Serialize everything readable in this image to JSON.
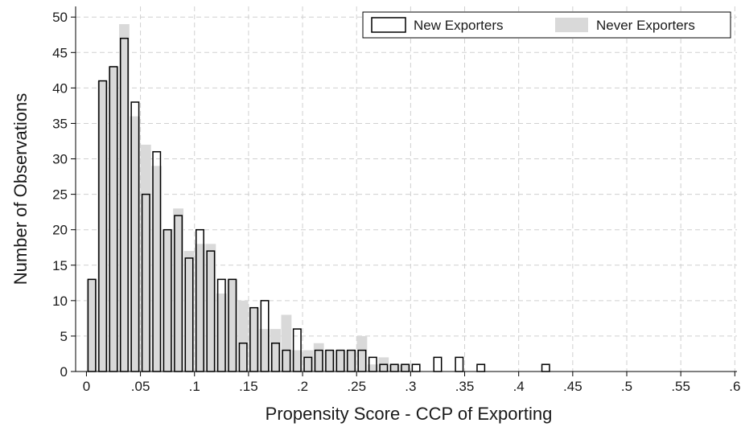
{
  "chart_data": {
    "type": "bar",
    "title": "",
    "xlabel": "Propensity Score - CCP of Exporting",
    "ylabel": "Number of Observations",
    "xlim": [
      -0.01,
      0.602
    ],
    "ylim": [
      0,
      51.5
    ],
    "grid": true,
    "legend_position": "top-right",
    "bin_width": 0.01,
    "x_ticks": [
      0,
      0.05,
      0.1,
      0.15,
      0.2,
      0.25,
      0.3,
      0.35,
      0.4,
      0.45,
      0.5,
      0.55,
      0.6
    ],
    "x_tick_labels": [
      "0",
      ".05",
      ".1",
      ".15",
      ".2",
      ".25",
      ".3",
      ".35",
      ".4",
      ".45",
      ".5",
      ".55",
      ".6"
    ],
    "y_ticks": [
      0,
      5,
      10,
      15,
      20,
      25,
      30,
      35,
      40,
      45,
      50
    ],
    "y_tick_labels": [
      "0",
      "5",
      "10",
      "15",
      "20",
      "25",
      "30",
      "35",
      "40",
      "45",
      "50"
    ],
    "colors": {
      "never_fill": "#d9d9d9",
      "new_stroke": "#000000",
      "new_fill": "#ffffff",
      "grid": "#d0d0d0"
    },
    "series": [
      {
        "name": "Never Exporters",
        "style": "filled-gray",
        "points": [
          {
            "x": 0.005,
            "y": 13
          },
          {
            "x": 0.015,
            "y": 41
          },
          {
            "x": 0.025,
            "y": 43
          },
          {
            "x": 0.035,
            "y": 49
          },
          {
            "x": 0.045,
            "y": 36
          },
          {
            "x": 0.055,
            "y": 32
          },
          {
            "x": 0.065,
            "y": 29
          },
          {
            "x": 0.075,
            "y": 20
          },
          {
            "x": 0.085,
            "y": 23
          },
          {
            "x": 0.095,
            "y": 17
          },
          {
            "x": 0.105,
            "y": 18
          },
          {
            "x": 0.115,
            "y": 18
          },
          {
            "x": 0.125,
            "y": 11
          },
          {
            "x": 0.135,
            "y": 13
          },
          {
            "x": 0.145,
            "y": 10
          },
          {
            "x": 0.155,
            "y": 9
          },
          {
            "x": 0.165,
            "y": 6
          },
          {
            "x": 0.175,
            "y": 6
          },
          {
            "x": 0.185,
            "y": 8
          },
          {
            "x": 0.195,
            "y": 3
          },
          {
            "x": 0.205,
            "y": 3
          },
          {
            "x": 0.215,
            "y": 4
          },
          {
            "x": 0.225,
            "y": 3
          },
          {
            "x": 0.235,
            "y": 3
          },
          {
            "x": 0.245,
            "y": 3
          },
          {
            "x": 0.255,
            "y": 5
          },
          {
            "x": 0.265,
            "y": 1
          },
          {
            "x": 0.275,
            "y": 2
          },
          {
            "x": 0.285,
            "y": 1
          },
          {
            "x": 0.295,
            "y": 1
          }
        ]
      },
      {
        "name": "New Exporters",
        "style": "outlined-white",
        "points": [
          {
            "x": 0.005,
            "y": 13
          },
          {
            "x": 0.015,
            "y": 41
          },
          {
            "x": 0.025,
            "y": 43
          },
          {
            "x": 0.035,
            "y": 47
          },
          {
            "x": 0.045,
            "y": 38
          },
          {
            "x": 0.055,
            "y": 25
          },
          {
            "x": 0.065,
            "y": 31
          },
          {
            "x": 0.075,
            "y": 20
          },
          {
            "x": 0.085,
            "y": 22
          },
          {
            "x": 0.095,
            "y": 16
          },
          {
            "x": 0.105,
            "y": 20
          },
          {
            "x": 0.115,
            "y": 17
          },
          {
            "x": 0.125,
            "y": 13
          },
          {
            "x": 0.135,
            "y": 13
          },
          {
            "x": 0.145,
            "y": 4
          },
          {
            "x": 0.155,
            "y": 9
          },
          {
            "x": 0.165,
            "y": 10
          },
          {
            "x": 0.175,
            "y": 4
          },
          {
            "x": 0.185,
            "y": 3
          },
          {
            "x": 0.195,
            "y": 6
          },
          {
            "x": 0.205,
            "y": 2
          },
          {
            "x": 0.215,
            "y": 3
          },
          {
            "x": 0.225,
            "y": 3
          },
          {
            "x": 0.235,
            "y": 3
          },
          {
            "x": 0.245,
            "y": 3
          },
          {
            "x": 0.255,
            "y": 3
          },
          {
            "x": 0.265,
            "y": 2
          },
          {
            "x": 0.275,
            "y": 1
          },
          {
            "x": 0.285,
            "y": 1
          },
          {
            "x": 0.295,
            "y": 1
          },
          {
            "x": 0.305,
            "y": 1
          },
          {
            "x": 0.325,
            "y": 2
          },
          {
            "x": 0.345,
            "y": 2
          },
          {
            "x": 0.365,
            "y": 1
          },
          {
            "x": 0.425,
            "y": 1
          }
        ]
      }
    ]
  }
}
